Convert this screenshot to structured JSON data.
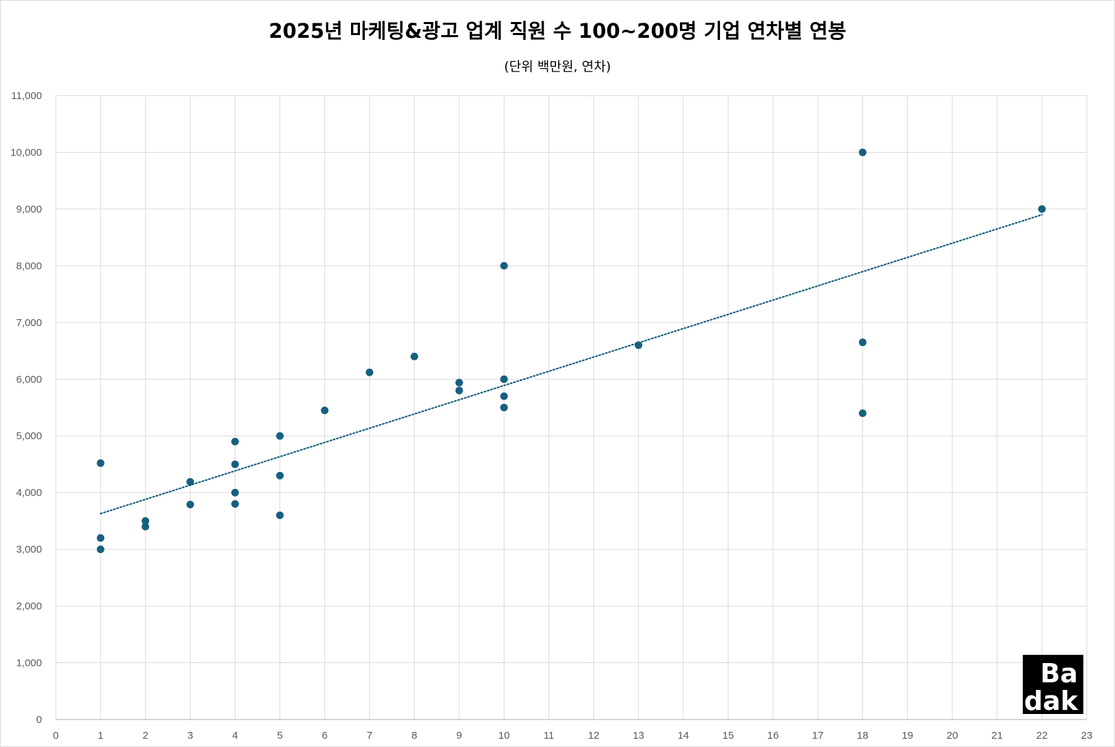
{
  "chart_data": {
    "type": "scatter",
    "title": "2025년 마케팅&광고 업계 직원 수 100~200명 기업 연차별 연봉",
    "subtitle": "(단위 백만원, 연차)",
    "xlim": [
      0,
      23
    ],
    "ylim": [
      0,
      11000
    ],
    "x_ticks": [
      0,
      1,
      2,
      3,
      4,
      5,
      6,
      7,
      8,
      9,
      10,
      11,
      12,
      13,
      14,
      15,
      16,
      17,
      18,
      19,
      20,
      21,
      22,
      23
    ],
    "y_ticks": [
      0,
      1000,
      2000,
      3000,
      4000,
      5000,
      6000,
      7000,
      8000,
      9000,
      10000,
      11000
    ],
    "y_tick_labels": [
      "0",
      "1,000",
      "2,000",
      "3,000",
      "4,000",
      "5,000",
      "6,000",
      "7,000",
      "8,000",
      "9,000",
      "10,000",
      "11,000"
    ],
    "grid": true,
    "legend": "none",
    "marker_color": "#17607f",
    "trendline": {
      "type": "linear",
      "style": "dotted",
      "color": "#17607f",
      "from": [
        1,
        3630
      ],
      "to": [
        22,
        8900
      ]
    },
    "points": [
      {
        "x": 1,
        "y": 4520
      },
      {
        "x": 1,
        "y": 3200
      },
      {
        "x": 1,
        "y": 3000
      },
      {
        "x": 2,
        "y": 3500
      },
      {
        "x": 2,
        "y": 3400
      },
      {
        "x": 3,
        "y": 4190
      },
      {
        "x": 3,
        "y": 3790
      },
      {
        "x": 4,
        "y": 4900
      },
      {
        "x": 4,
        "y": 4500
      },
      {
        "x": 4,
        "y": 4000
      },
      {
        "x": 4,
        "y": 3800
      },
      {
        "x": 5,
        "y": 5000
      },
      {
        "x": 5,
        "y": 4300
      },
      {
        "x": 5,
        "y": 3600
      },
      {
        "x": 6,
        "y": 5450
      },
      {
        "x": 7,
        "y": 6120
      },
      {
        "x": 8,
        "y": 6400
      },
      {
        "x": 9,
        "y": 5940
      },
      {
        "x": 9,
        "y": 5800
      },
      {
        "x": 10,
        "y": 8000
      },
      {
        "x": 10,
        "y": 6000
      },
      {
        "x": 10,
        "y": 5700
      },
      {
        "x": 10,
        "y": 5500
      },
      {
        "x": 13,
        "y": 6600
      },
      {
        "x": 18,
        "y": 10000
      },
      {
        "x": 18,
        "y": 6650
      },
      {
        "x": 18,
        "y": 5400
      },
      {
        "x": 22,
        "y": 9000
      }
    ]
  },
  "logo": {
    "line1": "Ba",
    "line2": "dak"
  }
}
